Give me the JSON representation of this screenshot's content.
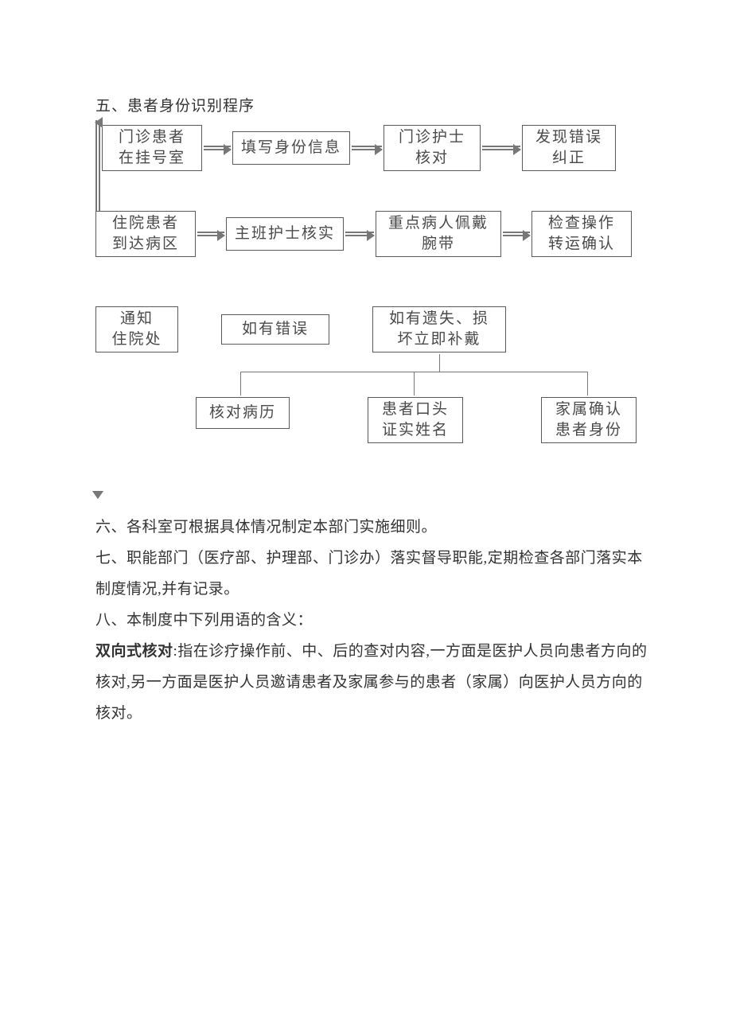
{
  "section5": {
    "heading": "五、患者身份识别程序"
  },
  "flowchart": {
    "type": "flowchart",
    "background_color": "#ffffff",
    "node_border_color": "#5a5a5a",
    "node_text_color": "#4a4a4a",
    "arrow_color": "#777777",
    "node_fontsize": 19,
    "nodes": {
      "n1": "门诊患者\n在挂号室",
      "n2": "填写身份信息",
      "n3": "门诊护士\n核对",
      "n4": "发现错误\n纠正",
      "n5": "住院患者\n到达病区",
      "n6": "主班护士核实",
      "n7": "重点病人佩戴\n腕带",
      "n8": "检查操作\n转运确认",
      "n9": "通知\n住院处",
      "n10": "如有错误",
      "n11": "如有遗失、损\n坏立即补戴",
      "n12": "核对病历",
      "n13": "患者口头\n证实姓名",
      "n14": "家属确认\n患者身份"
    }
  },
  "paragraphs": {
    "p6": "六、各科室可根据具体情况制定本部门实施细则。",
    "p7": "七、职能部门（医疗部、护理部、门诊办）落实督导职能,定期检查各部门落实本制度情况,并有记录。",
    "p8": "八、本制度中下列用语的含义：",
    "p9_term": "双向式核对",
    "p9_rest": ":指在诊疗操作前、中、后的查对内容,一方面是医护人员向患者方向的核对,另一方面是医护人员邀请患者及家属参与的患者（家属）向医护人员方向的核对。"
  }
}
